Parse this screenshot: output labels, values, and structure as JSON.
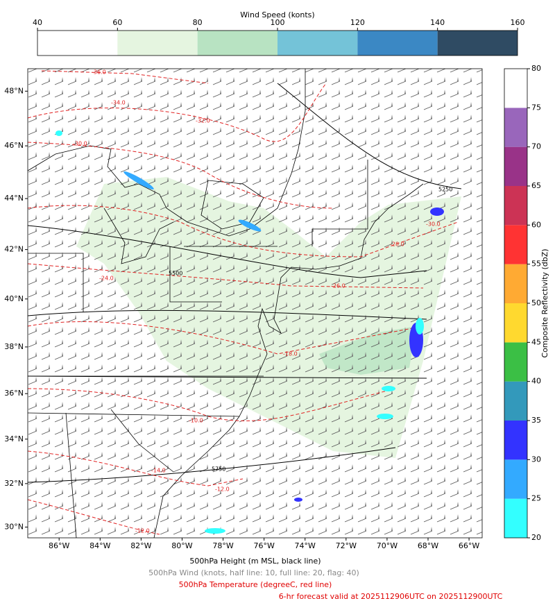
{
  "wind_colorbar": {
    "label": "Wind Speed (konts)",
    "bounds": [
      40,
      60,
      80,
      100,
      120,
      140,
      160
    ],
    "colors": [
      "#ffffff",
      "#e5f5e0",
      "#b8e3c2",
      "#74c3d8",
      "#3b88c4",
      "#2f4b63"
    ]
  },
  "reflectivity_colorbar": {
    "label": "Composite Reflectivity (dbZ)",
    "bounds": [
      20,
      25,
      30,
      35,
      40,
      45,
      50,
      55,
      60,
      65,
      70,
      75,
      80
    ],
    "colors": [
      "#33ffff",
      "#33aaff",
      "#3333ff",
      "#3399bb",
      "#3bbf45",
      "#ffd92f",
      "#ffaa33",
      "#ff3333",
      "#cc3355",
      "#993388",
      "#9966bb",
      "#ffffff"
    ]
  },
  "map": {
    "lon_lim": [
      -87.53,
      -65.36
    ],
    "lat_lim": [
      29.5,
      48.8
    ],
    "lon_ticks": [
      {
        "value": -86,
        "label": "86°W"
      },
      {
        "value": -84,
        "label": "84°W"
      },
      {
        "value": -82,
        "label": "82°W"
      },
      {
        "value": -80,
        "label": "80°W"
      },
      {
        "value": -78,
        "label": "78°W"
      },
      {
        "value": -76,
        "label": "76°W"
      },
      {
        "value": -74,
        "label": "74°W"
      },
      {
        "value": -72,
        "label": "72°W"
      },
      {
        "value": -70,
        "label": "70°W"
      },
      {
        "value": -68,
        "label": "68°W"
      },
      {
        "value": -66,
        "label": "66°W"
      }
    ],
    "lat_ticks": [
      {
        "value": 30,
        "label": "30°N"
      },
      {
        "value": 32,
        "label": "32°N"
      },
      {
        "value": 34,
        "label": "34°N"
      },
      {
        "value": 36,
        "label": "36°N"
      },
      {
        "value": 38,
        "label": "38°N"
      },
      {
        "value": 40,
        "label": "40°N"
      },
      {
        "value": 42,
        "label": "42°N"
      },
      {
        "value": 44,
        "label": "44°N"
      },
      {
        "value": 46,
        "label": "46°N"
      },
      {
        "value": 48,
        "label": "48°N"
      }
    ],
    "contour_labels": [
      "-36.0",
      "-34.0",
      "-32.0",
      "-30.0",
      "-30.0",
      "-28.0",
      "-26.0",
      "-24.0",
      "-18.0",
      "-10.0",
      "-14.0",
      "-12.0",
      "-12.0",
      "5250",
      "5500",
      "5750"
    ]
  },
  "captions": [
    "500hPa Height (m MSL, black line)",
    "500hPa Wind (knots, half line: 10, full line: 20, flag: 40)",
    "500hPa Temperature (degreeC, red line)",
    "6-hr forecast valid at 2025112906UTC on 2025112900UTC"
  ]
}
